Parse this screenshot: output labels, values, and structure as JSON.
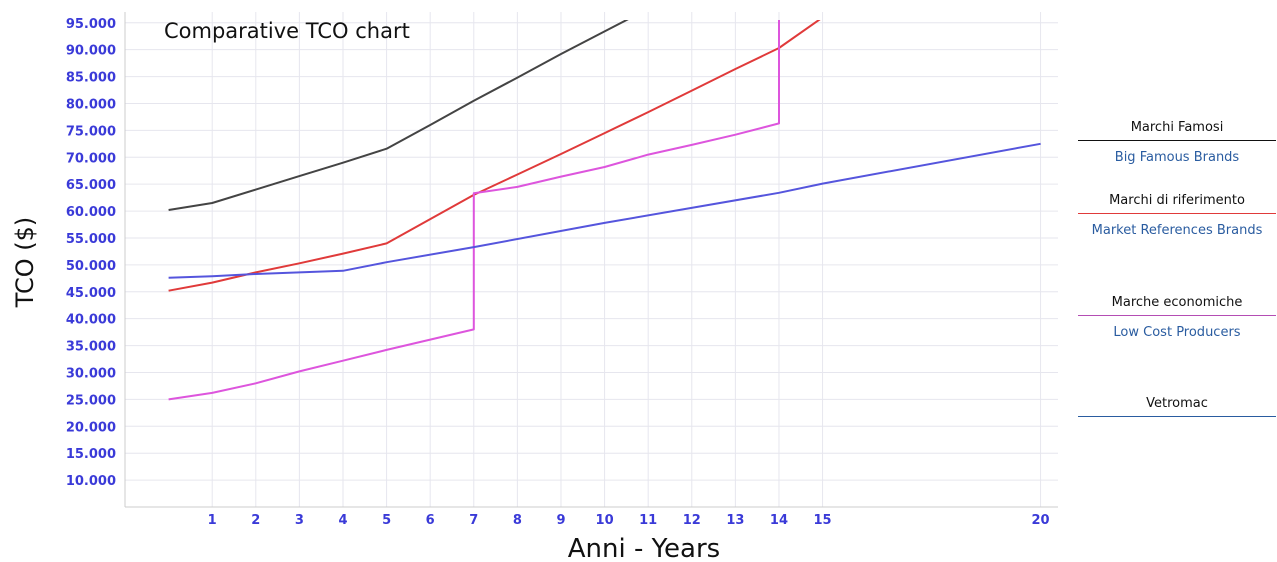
{
  "chart_data": {
    "type": "line",
    "title": "Comparative TCO chart",
    "xlabel": "Anni - Years",
    "ylabel": "TCO ($)",
    "xlim": [
      -1,
      20.4
    ],
    "ylim": [
      5000,
      97000
    ],
    "x_ticks": [
      1,
      2,
      3,
      4,
      5,
      6,
      7,
      8,
      9,
      10,
      11,
      12,
      13,
      14,
      15,
      20
    ],
    "y_ticks": [
      10000,
      15000,
      20000,
      25000,
      30000,
      35000,
      40000,
      45000,
      50000,
      55000,
      60000,
      65000,
      70000,
      75000,
      80000,
      85000,
      90000,
      95000
    ],
    "y_tick_labels": [
      "10.000",
      "15.000",
      "20.000",
      "25.000",
      "30.000",
      "35.000",
      "40.000",
      "45.000",
      "50.000",
      "55.000",
      "60.000",
      "65.000",
      "70.000",
      "75.000",
      "80.000",
      "85.000",
      "90.000",
      "95.000"
    ],
    "grid": true,
    "legend": "right",
    "series": [
      {
        "name": "Marchi Famosi",
        "color": "#444444",
        "points": [
          [
            0,
            60200
          ],
          [
            1,
            61500
          ],
          [
            2,
            64000
          ],
          [
            3,
            66500
          ],
          [
            4,
            69000
          ],
          [
            5,
            71600
          ],
          [
            6,
            76000
          ],
          [
            7,
            80500
          ],
          [
            8,
            84800
          ],
          [
            9,
            89200
          ],
          [
            10,
            93400
          ],
          [
            11,
            97600
          ],
          [
            11.3,
            99800
          ]
        ]
      },
      {
        "name": "Marchi di riferimento",
        "color": "#e03a3a",
        "points": [
          [
            0,
            45200
          ],
          [
            1,
            46700
          ],
          [
            2,
            48600
          ],
          [
            3,
            50300
          ],
          [
            4,
            52100
          ],
          [
            5,
            54000
          ],
          [
            7,
            63000
          ],
          [
            8,
            66800
          ],
          [
            9,
            70600
          ],
          [
            10,
            74500
          ],
          [
            11,
            78400
          ],
          [
            12,
            82400
          ],
          [
            13,
            86400
          ],
          [
            14,
            90300
          ],
          [
            15,
            96000
          ]
        ]
      },
      {
        "name": "Marche economiche",
        "color": "#dd55dd",
        "points": [
          [
            0,
            25000
          ],
          [
            1,
            26200
          ],
          [
            2,
            28000
          ],
          [
            3,
            30200
          ],
          [
            4,
            32200
          ],
          [
            5,
            34200
          ],
          [
            7,
            38000
          ],
          [
            7,
            63300
          ],
          [
            8,
            64500
          ],
          [
            9,
            66400
          ],
          [
            10,
            68200
          ],
          [
            11,
            70500
          ],
          [
            12,
            72300
          ],
          [
            13,
            74200
          ],
          [
            14,
            76300
          ],
          [
            14,
            96000
          ]
        ]
      },
      {
        "name": "Vetromac",
        "color": "#5555dd",
        "points": [
          [
            0,
            47600
          ],
          [
            1,
            47900
          ],
          [
            2,
            48300
          ],
          [
            3,
            48600
          ],
          [
            4,
            48900
          ],
          [
            5,
            50500
          ],
          [
            7,
            53300
          ],
          [
            10,
            57800
          ],
          [
            14,
            63400
          ],
          [
            15,
            65100
          ],
          [
            20,
            72500
          ]
        ]
      }
    ]
  },
  "legend": {
    "entries": [
      {
        "label": "Marchi Famosi",
        "sublabel": "Big Famous Brands",
        "color": "#111111"
      },
      {
        "label": "Marchi di riferimento",
        "sublabel": "Market References Brands",
        "color": "#e03a3a"
      },
      {
        "label": "Marche economiche",
        "sublabel": "Low Cost Producers",
        "color": "#b44db4"
      },
      {
        "label": "Vetromac",
        "sublabel": "",
        "color": "#2a5ca0"
      }
    ]
  }
}
